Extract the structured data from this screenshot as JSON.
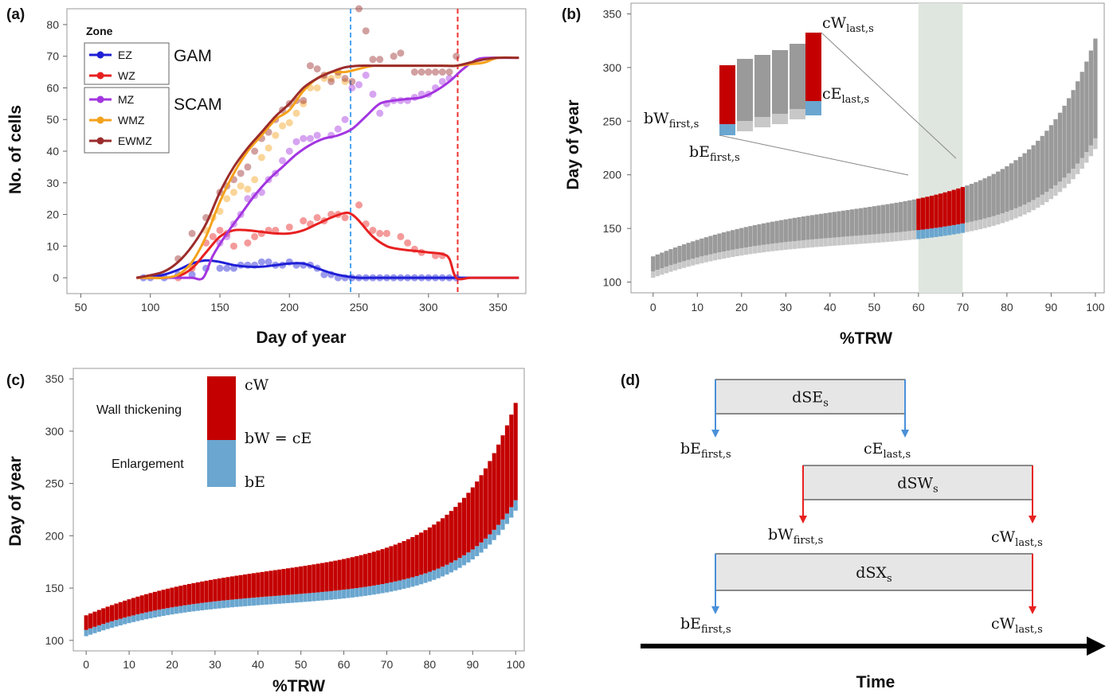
{
  "panels": {
    "a": "(a)",
    "b": "(b)",
    "c": "(c)",
    "d": "(d)"
  },
  "colors": {
    "EZ": "#1f1fd6",
    "WZ": "#e82020",
    "MZ": "#a335e0",
    "WMZ": "#f5a21c",
    "EWMZ": "#9b2c2c",
    "vline_blue": "#4aa3f0",
    "vline_red": "#f03030",
    "bar_dark": "#9a9a9a",
    "bar_light": "#c8c8c8",
    "wall": "#c40000",
    "enlargement": "#6aa6cf",
    "highlight": "#dfe6df",
    "box_fill": "#e6e6e6",
    "arrow_blue": "#4a90d9",
    "arrow_red": "#e82020"
  },
  "legend": {
    "title": "Zone",
    "gam_label": "GAM",
    "scam_label": "SCAM",
    "items": [
      "EZ",
      "WZ",
      "MZ",
      "WMZ",
      "EWMZ"
    ]
  },
  "chart_data": [
    {
      "panel": "a",
      "type": "line",
      "xlabel": "Day of year",
      "ylabel": "No. of cells",
      "xlim": [
        40,
        370
      ],
      "ylim": [
        -5,
        85
      ],
      "xticks": [
        50,
        100,
        150,
        200,
        250,
        300,
        350
      ],
      "yticks": [
        0,
        10,
        20,
        30,
        40,
        50,
        60,
        70,
        80
      ],
      "vlines": [
        {
          "x": 244,
          "color": "blue"
        },
        {
          "x": 321,
          "color": "red"
        }
      ],
      "grid": false,
      "legend_position": "top-left",
      "series": [
        {
          "name": "EZ",
          "x": [
            90,
            100,
            110,
            120,
            130,
            140,
            150,
            160,
            170,
            180,
            190,
            200,
            210,
            220,
            230,
            240,
            250,
            260,
            270,
            280,
            290,
            300,
            310,
            320,
            330,
            340,
            350,
            365
          ],
          "y": [
            0,
            0.3,
            1,
            2.5,
            4.5,
            5.5,
            5,
            4,
            3.5,
            3.5,
            4,
            4.5,
            4.5,
            3,
            1.5,
            0.5,
            0,
            0,
            0,
            0,
            0,
            0,
            0,
            0,
            0,
            0,
            0,
            0
          ]
        },
        {
          "name": "WZ",
          "x": [
            90,
            100,
            110,
            120,
            130,
            140,
            150,
            160,
            170,
            180,
            190,
            200,
            210,
            220,
            230,
            240,
            245,
            250,
            260,
            270,
            280,
            290,
            300,
            310,
            315,
            320,
            330,
            340,
            350,
            365
          ],
          "y": [
            0,
            0,
            0,
            0.5,
            3,
            8,
            13,
            15,
            15,
            14.5,
            14,
            14,
            15,
            17,
            19,
            20.5,
            20,
            18,
            13,
            10,
            9,
            8.5,
            8,
            7.5,
            6,
            0,
            0,
            0,
            0,
            0
          ]
        },
        {
          "name": "MZ",
          "x": [
            90,
            100,
            110,
            120,
            130,
            138,
            145,
            155,
            165,
            175,
            185,
            195,
            205,
            215,
            225,
            235,
            245,
            255,
            265,
            275,
            285,
            295,
            305,
            315,
            325,
            335,
            345,
            355,
            365
          ],
          "y": [
            0,
            0,
            0,
            0,
            0,
            0,
            7,
            14,
            20,
            26,
            31,
            35,
            39,
            42,
            44,
            45,
            47,
            51,
            55,
            56,
            56.5,
            57,
            59,
            62,
            66,
            69,
            69.5,
            69.5,
            69.5
          ]
        },
        {
          "name": "WMZ",
          "x": [
            90,
            100,
            110,
            120,
            130,
            140,
            150,
            160,
            170,
            180,
            190,
            200,
            210,
            220,
            230,
            240,
            250,
            260,
            270,
            280,
            290,
            300,
            310,
            320,
            330,
            340,
            350,
            365
          ],
          "y": [
            0,
            0,
            0,
            1,
            5,
            13,
            24,
            33,
            40,
            45,
            50,
            53,
            59,
            63,
            65,
            65,
            66,
            67,
            67,
            67,
            67,
            67,
            67,
            67,
            67.5,
            68,
            69.5,
            69.5
          ]
        },
        {
          "name": "EWMZ",
          "x": [
            90,
            100,
            110,
            120,
            130,
            140,
            150,
            160,
            170,
            180,
            190,
            200,
            210,
            220,
            230,
            240,
            250,
            260,
            270,
            280,
            290,
            300,
            310,
            320,
            330,
            340,
            350,
            365
          ],
          "y": [
            0,
            0.8,
            2,
            5,
            10,
            17,
            27,
            35,
            41,
            46,
            51,
            55,
            60,
            63,
            65,
            66.5,
            67,
            67,
            67,
            67,
            67,
            67,
            67,
            67,
            68,
            69,
            69.5,
            69.5
          ]
        }
      ],
      "points": [
        {
          "name": "EZ",
          "x": [
            95,
            100,
            110,
            120,
            130,
            140,
            150,
            155,
            160,
            165,
            170,
            175,
            180,
            185,
            190,
            195,
            200,
            205,
            210,
            215,
            220,
            225,
            230,
            235,
            240,
            245,
            250,
            255,
            260,
            265,
            270,
            275,
            280,
            285,
            290,
            295,
            300,
            305,
            310,
            315,
            320
          ],
          "y": [
            0,
            0,
            0,
            1,
            1,
            3,
            3,
            3,
            3,
            4,
            4,
            4,
            5,
            5,
            4,
            4,
            5,
            4,
            4,
            4,
            3,
            1,
            1,
            0,
            0,
            0,
            0,
            0,
            0,
            0,
            0,
            0,
            0,
            0,
            0,
            0,
            0,
            0,
            0,
            0,
            0
          ]
        },
        {
          "name": "WZ",
          "x": [
            120,
            130,
            140,
            145,
            150,
            155,
            160,
            170,
            175,
            180,
            185,
            190,
            200,
            210,
            215,
            220,
            225,
            230,
            235,
            240,
            250,
            255,
            260,
            265,
            270,
            280,
            285,
            290,
            295,
            305,
            310
          ],
          "y": [
            0,
            3,
            11,
            13,
            15,
            14,
            10,
            11,
            13,
            14,
            15,
            15,
            16,
            18,
            17,
            19,
            18,
            20,
            20,
            19,
            23,
            17,
            15,
            14,
            14,
            13,
            11,
            9,
            8,
            7,
            7
          ]
        },
        {
          "name": "MZ",
          "x": [
            150,
            155,
            160,
            165,
            170,
            175,
            180,
            185,
            190,
            195,
            200,
            205,
            210,
            215,
            220,
            230,
            235,
            240,
            245,
            250,
            255,
            260,
            265,
            270,
            275,
            280,
            285,
            290,
            295,
            300,
            305,
            310,
            315
          ],
          "y": [
            11,
            13,
            17,
            20,
            25,
            26,
            27,
            31,
            33,
            37,
            40,
            43,
            44,
            44,
            45,
            45,
            47,
            50,
            60,
            61,
            64,
            58,
            52,
            55,
            56,
            56,
            56,
            57,
            58,
            58,
            60,
            62,
            63
          ]
        },
        {
          "name": "WMZ",
          "x": [
            130,
            140,
            145,
            150,
            155,
            160,
            165,
            170,
            175,
            180,
            185,
            190,
            195,
            200,
            205,
            210,
            215,
            220,
            225,
            230,
            235,
            240
          ],
          "y": [
            4,
            15,
            19,
            21,
            25,
            27,
            29,
            28,
            31,
            38,
            41,
            45,
            48,
            49,
            52,
            55,
            60,
            60,
            63,
            63,
            64,
            62
          ]
        },
        {
          "name": "EWMZ",
          "x": [
            120,
            130,
            140,
            150,
            155,
            160,
            165,
            170,
            175,
            180,
            185,
            190,
            195,
            200,
            205,
            210,
            215,
            220,
            225,
            230,
            235,
            240,
            245,
            250,
            255,
            260,
            265,
            275,
            280,
            290,
            295,
            300,
            305,
            310,
            315,
            320
          ],
          "y": [
            6,
            14,
            19,
            27,
            29,
            31,
            33,
            35,
            40,
            44,
            46,
            50,
            53,
            55,
            56,
            56,
            67,
            66,
            64,
            62,
            65,
            63,
            62,
            85,
            78,
            69,
            69,
            70,
            71,
            65,
            65,
            65,
            65,
            65,
            65,
            70
          ]
        }
      ]
    },
    {
      "panel": "b",
      "type": "bar",
      "xlabel": "%TRW",
      "ylabel": "Day of year",
      "xlim": [
        -5,
        102
      ],
      "ylim": [
        90,
        360
      ],
      "xticks": [
        0,
        10,
        20,
        30,
        40,
        50,
        60,
        70,
        80,
        90,
        100
      ],
      "yticks": [
        100,
        150,
        200,
        250,
        300,
        350
      ],
      "highlight_range": [
        60,
        70
      ],
      "grid": false,
      "bars": "floating ranges bE to cW per %TRW, lighter enlargement below darker wall-thickening",
      "inset_labels": {
        "cW_last": {
          "base": "cW",
          "sub": "last,s"
        },
        "cE_last": {
          "base": "cE",
          "sub": "last,s"
        },
        "bW_first": {
          "base": "bW",
          "sub": "first,s"
        },
        "bE_first": {
          "base": "bE",
          "sub": "first,s"
        }
      }
    },
    {
      "panel": "c",
      "type": "bar",
      "xlabel": "%TRW",
      "ylabel": "Day of year",
      "xlim": [
        -3,
        102
      ],
      "ylim": [
        90,
        360
      ],
      "xticks": [
        0,
        10,
        20,
        30,
        40,
        50,
        60,
        70,
        80,
        90,
        100
      ],
      "yticks": [
        100,
        150,
        200,
        250,
        300,
        350
      ],
      "grid": false,
      "legend": {
        "wall_label": "Wall thickening",
        "enl_label": "Enlargement",
        "cW": "cW",
        "bW_eq_cE": "bW = cE",
        "bE": "bE"
      }
    }
  ],
  "diagram_d": {
    "time_label": "Time",
    "rows": [
      {
        "box": {
          "base": "dSE",
          "sub": "s"
        },
        "left": {
          "base": "bE",
          "sub": "first,s"
        },
        "right": {
          "base": "cE",
          "sub": "last,s"
        }
      },
      {
        "box": {
          "base": "dSW",
          "sub": "s"
        },
        "left": {
          "base": "bW",
          "sub": "first,s"
        },
        "right": {
          "base": "cW",
          "sub": "last,s"
        }
      },
      {
        "box": {
          "base": "dSX",
          "sub": "s"
        },
        "left": {
          "base": "bE",
          "sub": "first,s"
        },
        "right": {
          "base": "cW",
          "sub": "last,s"
        }
      }
    ]
  }
}
